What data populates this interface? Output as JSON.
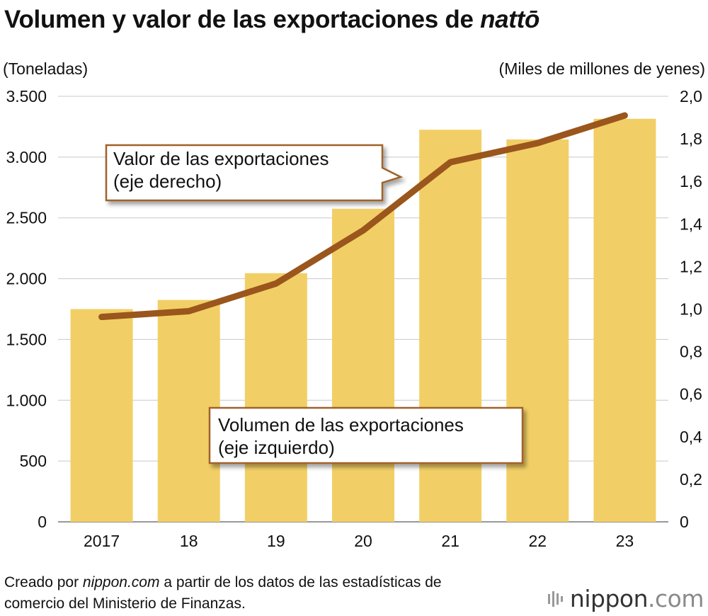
{
  "title": {
    "main": "Volumen y valor de las exportaciones de",
    "italic": "nattō"
  },
  "left_unit": "(Toneladas)",
  "right_unit": "(Miles de millones de yenes)",
  "chart_data": {
    "type": "bar+line",
    "title": "Volumen y valor de las exportaciones de nattō",
    "categories": [
      "2017",
      "18",
      "19",
      "20",
      "21",
      "22",
      "23"
    ],
    "series": [
      {
        "name": "Volumen de las exportaciones (eje izquierdo)",
        "type": "bar",
        "axis": "left",
        "unit": "Toneladas",
        "values": [
          1750,
          1825,
          2045,
          2575,
          3225,
          3145,
          3315
        ]
      },
      {
        "name": "Valor de las exportaciones (eje derecho)",
        "type": "line",
        "axis": "right",
        "unit": "Miles de millones de yenes",
        "values": [
          0.963,
          0.99,
          1.12,
          1.37,
          1.69,
          1.78,
          1.91
        ]
      }
    ],
    "left_axis": {
      "range": [
        0,
        3500
      ],
      "ticks": [
        0,
        500,
        1000,
        1500,
        2000,
        2500,
        3000,
        3500
      ],
      "tick_labels": [
        "0",
        "500",
        "1.000",
        "1.500",
        "2.000",
        "2.500",
        "3.000",
        "3.500"
      ]
    },
    "right_axis": {
      "range": [
        0,
        2.0
      ],
      "ticks": [
        0,
        0.2,
        0.4,
        0.6,
        0.8,
        1.0,
        1.2,
        1.4,
        1.6,
        1.8,
        2.0
      ],
      "tick_labels": [
        "0",
        "0,2",
        "0,4",
        "0,6",
        "0,8",
        "1,0",
        "1,2",
        "1,4",
        "1,6",
        "1,8",
        "2,0"
      ]
    },
    "grid": true,
    "annotations": {
      "line_label": [
        "Valor de las exportaciones",
        "(eje derecho)"
      ],
      "bar_label": [
        "Volumen de las exportaciones",
        "(eje izquierdo)"
      ]
    },
    "colors": {
      "bar": "#F2CF66",
      "line": "#9A561C",
      "grid": "#C8C8C8",
      "callout_border": "#A0622A"
    }
  },
  "footer": {
    "prefix": "Creado por",
    "site": "nippon.com",
    "suffix": "a partir de los datos de las estadísticas de",
    "line2": "comercio del Ministerio de Finanzas."
  },
  "brand": {
    "name": "nippon",
    "tld": ".com"
  }
}
